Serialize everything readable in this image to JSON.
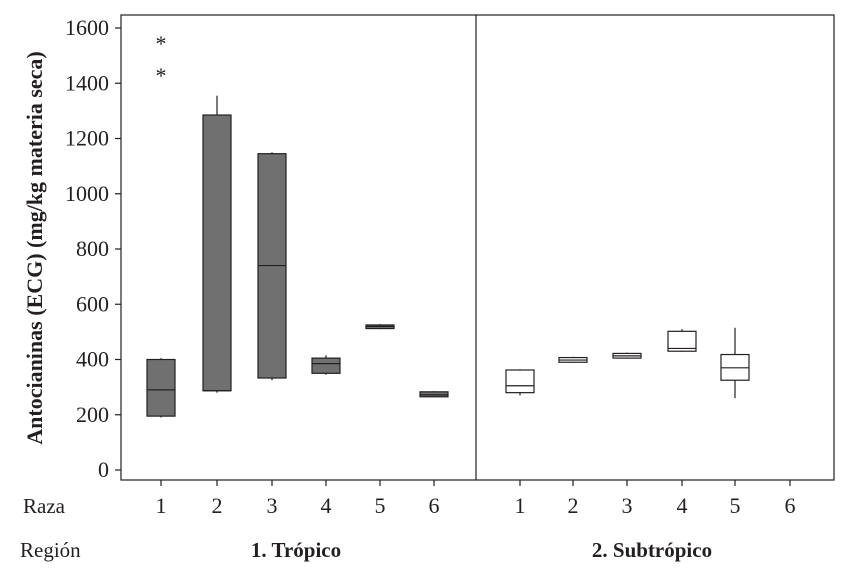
{
  "chart_data": {
    "type": "boxplot",
    "ylabel": "Antocianinas (ECG) (mg/kg materia seca)",
    "ylim": [
      0,
      1600
    ],
    "yticks": [
      0,
      200,
      400,
      600,
      800,
      1000,
      1200,
      1400,
      1600
    ],
    "xaxis_row_label": "Raza",
    "group_row_label": "Región",
    "colors": {
      "tropico_fill": "#707070",
      "subtropico_fill": "#ffffff",
      "stroke": "#231f20"
    },
    "panels": [
      {
        "name": "1. Trópico",
        "categories": [
          "1",
          "2",
          "3",
          "4",
          "5",
          "6"
        ],
        "boxes": [
          {
            "raza": "1",
            "whisker_low": 190,
            "q1": 195,
            "median": 290,
            "q3": 400,
            "whisker_high": 405,
            "outliers": [
              1445,
              1560
            ]
          },
          {
            "raza": "2",
            "whisker_low": 280,
            "q1": 287,
            "median": 287,
            "q3": 1285,
            "whisker_high": 1355,
            "outliers": []
          },
          {
            "raza": "3",
            "whisker_low": 325,
            "q1": 333,
            "median": 740,
            "q3": 1145,
            "whisker_high": 1150,
            "outliers": []
          },
          {
            "raza": "4",
            "whisker_low": 345,
            "q1": 350,
            "median": 385,
            "q3": 405,
            "whisker_high": 415,
            "outliers": []
          },
          {
            "raza": "5",
            "whisker_low": 510,
            "q1": 512,
            "median": 520,
            "q3": 525,
            "whisker_high": 528,
            "outliers": []
          },
          {
            "raza": "6",
            "whisker_low": 263,
            "q1": 265,
            "median": 272,
            "q3": 283,
            "whisker_high": 285,
            "outliers": []
          }
        ]
      },
      {
        "name": "2. Subtrópico",
        "categories": [
          "1",
          "2",
          "3",
          "4",
          "5",
          "6"
        ],
        "boxes": [
          {
            "raza": "1",
            "whisker_low": 270,
            "q1": 280,
            "median": 305,
            "q3": 362,
            "whisker_high": 365,
            "outliers": []
          },
          {
            "raza": "2",
            "whisker_low": 388,
            "q1": 390,
            "median": 398,
            "q3": 407,
            "whisker_high": 410,
            "outliers": []
          },
          {
            "raza": "3",
            "whisker_low": 403,
            "q1": 405,
            "median": 413,
            "q3": 422,
            "whisker_high": 425,
            "outliers": []
          },
          {
            "raza": "4",
            "whisker_low": 428,
            "q1": 430,
            "median": 440,
            "q3": 502,
            "whisker_high": 510,
            "outliers": []
          },
          {
            "raza": "5",
            "whisker_low": 260,
            "q1": 325,
            "median": 370,
            "q3": 418,
            "whisker_high": 515,
            "outliers": []
          }
        ]
      }
    ]
  }
}
